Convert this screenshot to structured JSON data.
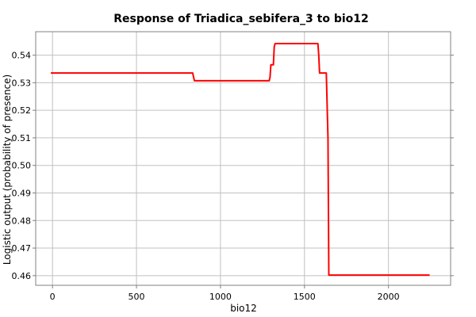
{
  "chart_data": {
    "type": "line",
    "title": "Response of Triadica_sebifera_3 to bio12",
    "xlabel": "bio12",
    "ylabel": "Logistic output (probability of presence)",
    "xlim": [
      -100,
      2370
    ],
    "ylim": [
      0.4565,
      0.5485
    ],
    "x_ticks": [
      0,
      500,
      1000,
      1500,
      2000
    ],
    "y_ticks": [
      0.46,
      0.47,
      0.48,
      0.49,
      0.5,
      0.51,
      0.52,
      0.53,
      0.54
    ],
    "x_tick_labels": [
      "0",
      "500",
      "1000",
      "1500",
      "2000"
    ],
    "y_tick_labels": [
      "0.46",
      "0.47",
      "0.48",
      "0.49",
      "0.50",
      "0.51",
      "0.52",
      "0.53",
      "0.54"
    ],
    "grid": true,
    "series": [
      {
        "color": "#ff0000",
        "x": [
          -10,
          835,
          838,
          845,
          1290,
          1295,
          1300,
          1315,
          1320,
          1325,
          1580,
          1585,
          1590,
          1630,
          1640,
          1645,
          2245
        ],
        "y": [
          0.5335,
          0.5335,
          0.5325,
          0.5307,
          0.5307,
          0.532,
          0.5365,
          0.5365,
          0.543,
          0.5442,
          0.5442,
          0.54,
          0.5335,
          0.5335,
          0.51,
          0.4602,
          0.4602
        ]
      }
    ]
  }
}
